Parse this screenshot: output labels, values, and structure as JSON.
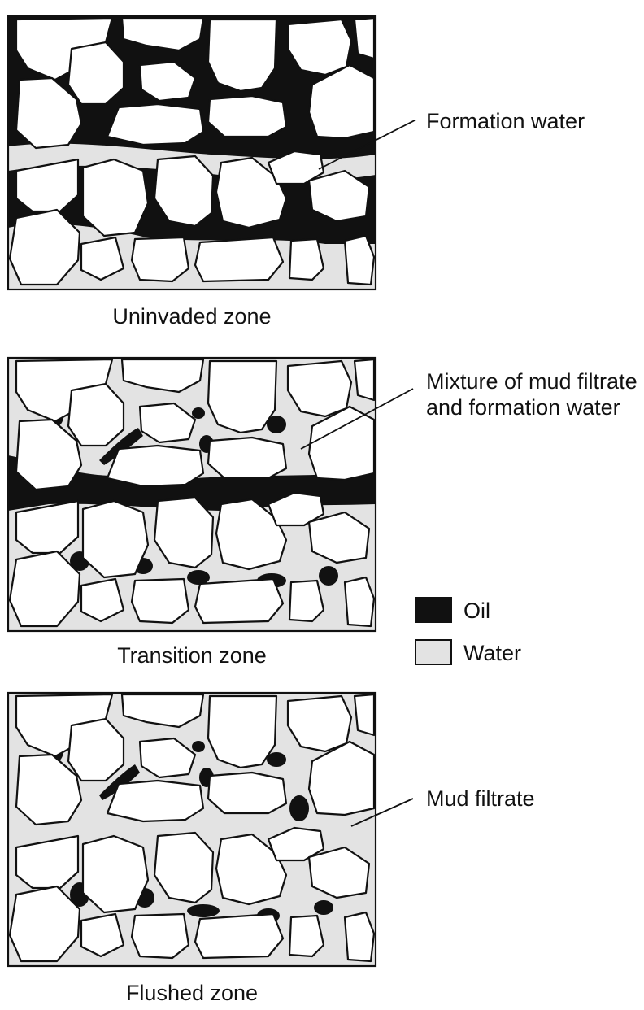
{
  "panels": [
    {
      "id": "uninvaded",
      "caption": "Uninvaded zone",
      "callout": [
        "Formation water"
      ]
    },
    {
      "id": "transition",
      "caption": "Transition zone",
      "callout": [
        "Mixture of mud filtrate",
        "and formation water"
      ]
    },
    {
      "id": "flushed",
      "caption": "Flushed zone",
      "callout": [
        "Mud filtrate"
      ]
    }
  ],
  "legend": {
    "items": [
      {
        "label": "Oil",
        "color": "#111111"
      },
      {
        "label": "Water",
        "color": "#e3e3e3"
      }
    ]
  },
  "colors": {
    "oil": "#111111",
    "water": "#e3e3e3",
    "grain": "#ffffff"
  }
}
